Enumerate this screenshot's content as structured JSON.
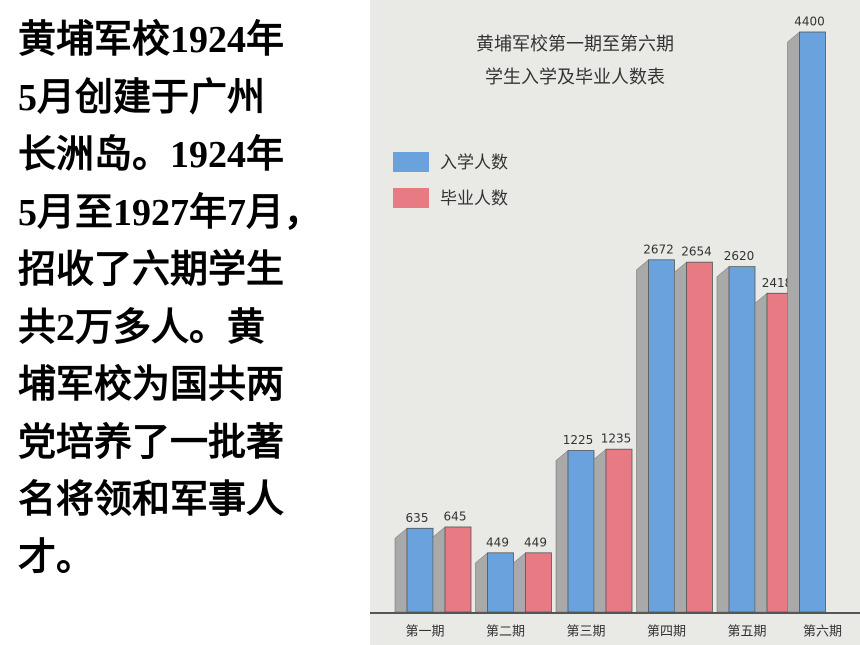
{
  "text": [
    "黄埔军校1924年",
    "5月创建于广州",
    "长洲岛。1924年",
    "5月至1927年7月，",
    "招收了六期学生",
    "共2万多人。黄",
    "埔军校为国共两",
    "党培养了一批著",
    "名将领和军事人",
    "才。"
  ],
  "chart_data": {
    "type": "bar",
    "title": [
      "黄埔军校第一期至第六期",
      "学生入学及毕业人数表"
    ],
    "categories": [
      "第一期",
      "第二期",
      "第三期",
      "第四期",
      "第五期",
      "第六期"
    ],
    "series": [
      {
        "name": "入学人数",
        "color": "#6aa2de",
        "values": [
          635,
          449,
          1225,
          2672,
          2620,
          4400
        ]
      },
      {
        "name": "毕业人数",
        "color": "#e87a84",
        "values": [
          645,
          449,
          1235,
          2654,
          2418,
          null
        ]
      }
    ]
  }
}
